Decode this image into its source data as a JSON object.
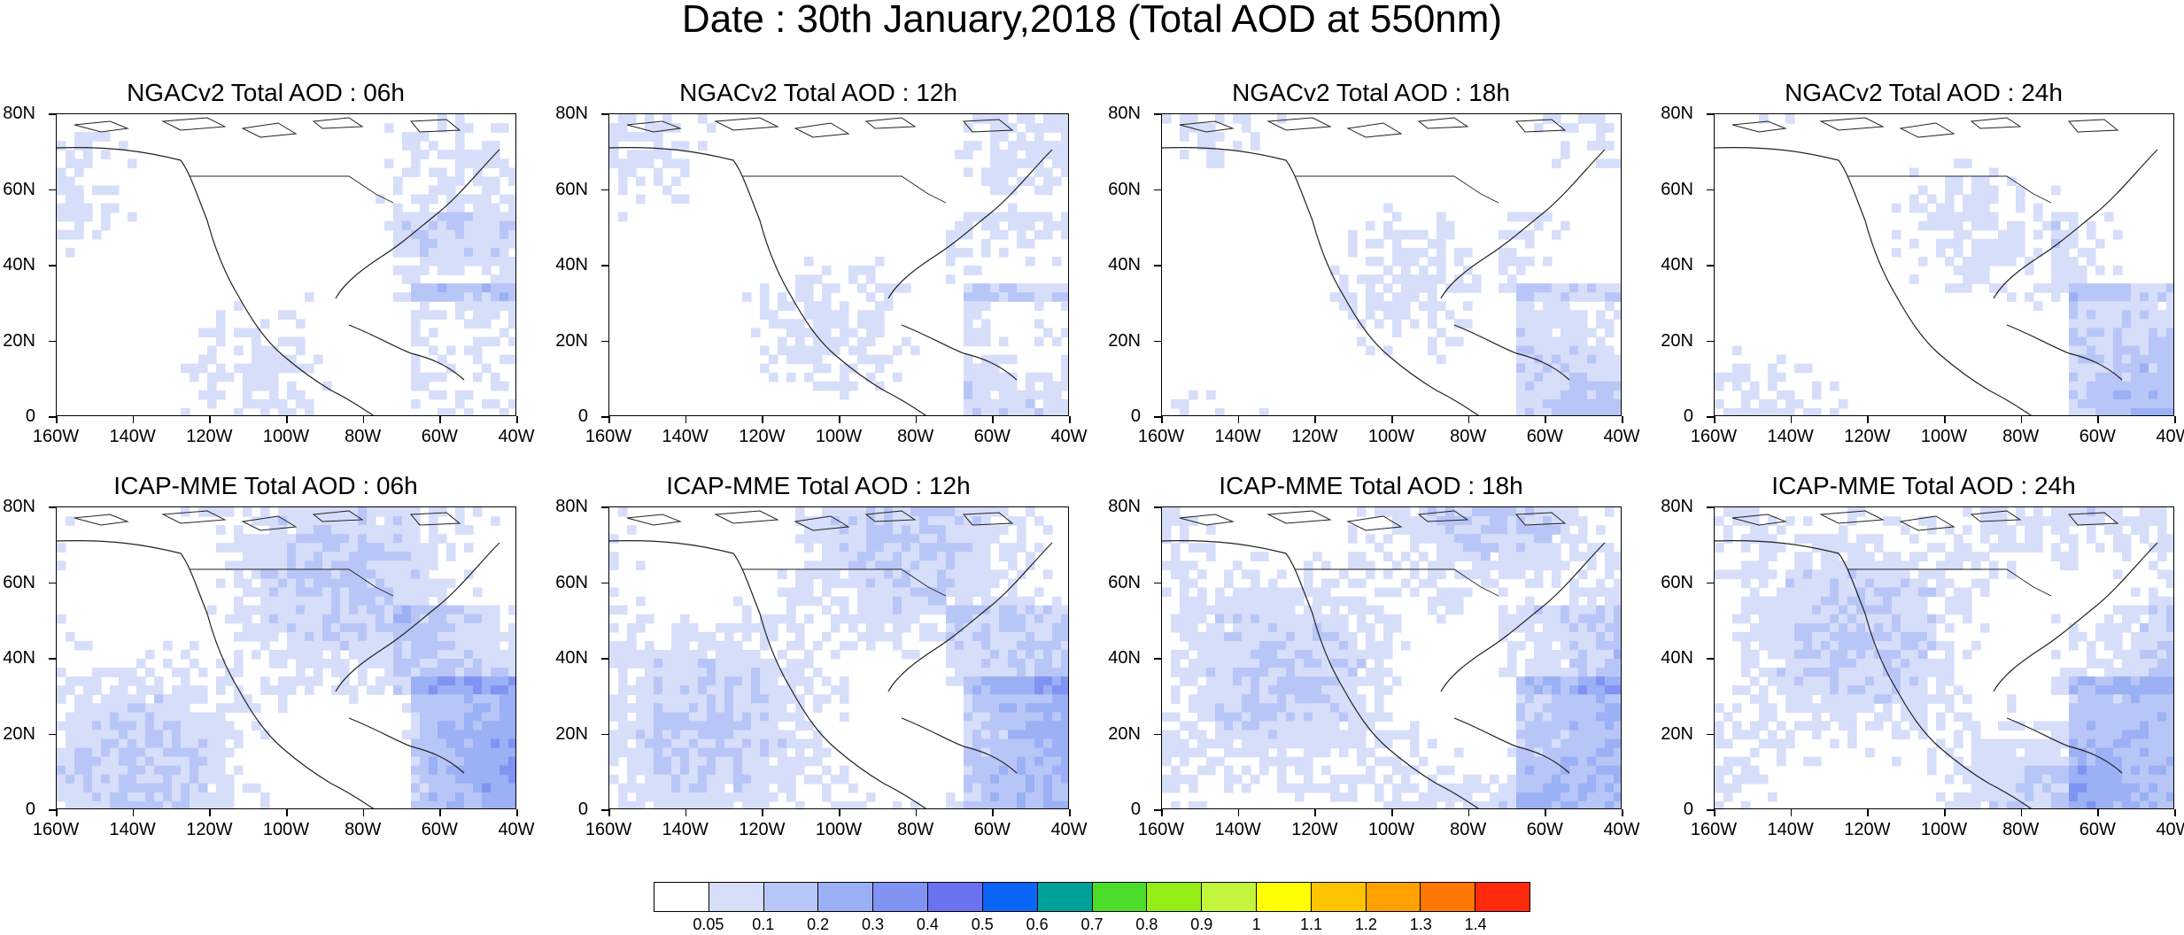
{
  "title": "Date : 30th January,2018 (Total AOD at 550nm)",
  "y_ticks": [
    "80N",
    "60N",
    "40N",
    "20N",
    "0"
  ],
  "x_ticks": [
    "160W",
    "140W",
    "120W",
    "100W",
    "80W",
    "60W",
    "40W"
  ],
  "panels": [
    {
      "title": "NGACv2 Total AOD : 06h",
      "model": "NGACv2",
      "hour": "06h"
    },
    {
      "title": "NGACv2 Total AOD : 12h",
      "model": "NGACv2",
      "hour": "12h"
    },
    {
      "title": "NGACv2 Total AOD : 18h",
      "model": "NGACv2",
      "hour": "18h"
    },
    {
      "title": "NGACv2 Total AOD : 24h",
      "model": "NGACv2",
      "hour": "24h"
    },
    {
      "title": "ICAP-MME Total AOD : 06h",
      "model": "ICAP-MME",
      "hour": "06h"
    },
    {
      "title": "ICAP-MME Total AOD : 12h",
      "model": "ICAP-MME",
      "hour": "12h"
    },
    {
      "title": "ICAP-MME Total AOD : 18h",
      "model": "ICAP-MME",
      "hour": "18h"
    },
    {
      "title": "ICAP-MME Total AOD : 24h",
      "model": "ICAP-MME",
      "hour": "24h"
    }
  ],
  "colorbar": {
    "labels": [
      "0.05",
      "0.1",
      "0.2",
      "0.3",
      "0.4",
      "0.5",
      "0.6",
      "0.7",
      "0.8",
      "0.9",
      "1",
      "1.1",
      "1.2",
      "1.3",
      "1.4"
    ],
    "colors": [
      "#ffffff",
      "#d6defa",
      "#b8c6f7",
      "#9bb0f5",
      "#8092f2",
      "#6a72ef",
      "#0a64f5",
      "#00a09a",
      "#4bdc2a",
      "#94ee16",
      "#c2f53c",
      "#ffff00",
      "#ffc400",
      "#ffa200",
      "#ff7700",
      "#ff2a0c"
    ]
  }
}
